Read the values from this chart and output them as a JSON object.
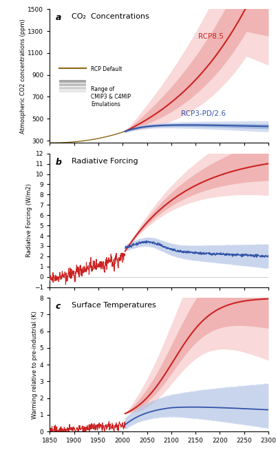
{
  "ylabel_a": "Atmospheric CO2 concentrations (ppm)",
  "ylabel_b": "Radiative Forcing (W/m2)",
  "ylabel_c": "Warming relative to pre-industrial (K)",
  "xlim": [
    1850,
    2300
  ],
  "xticks": [
    1850,
    1900,
    1950,
    2000,
    2050,
    2100,
    2150,
    2200,
    2250,
    2300
  ],
  "ylim_a": [
    280,
    1500
  ],
  "ylim_b": [
    -1,
    12
  ],
  "ylim_c": [
    0,
    8
  ],
  "red_color": "#cc2222",
  "blue_color": "#3355aa",
  "red_fill_light": "#f5c0c0",
  "red_fill_medium": "#e89090",
  "blue_fill_light": "#b8c8e8",
  "blue_fill_medium": "#7799cc",
  "brown_color": "#8B6914",
  "background": "#ffffff",
  "legend_rcp_default": "RCP Default",
  "legend_range": "Range of\nCMIP3 & C4MIP\nEmulations",
  "label_rcp85": "RCP8.5",
  "label_rcp26": "RCP3-PD/2.6"
}
